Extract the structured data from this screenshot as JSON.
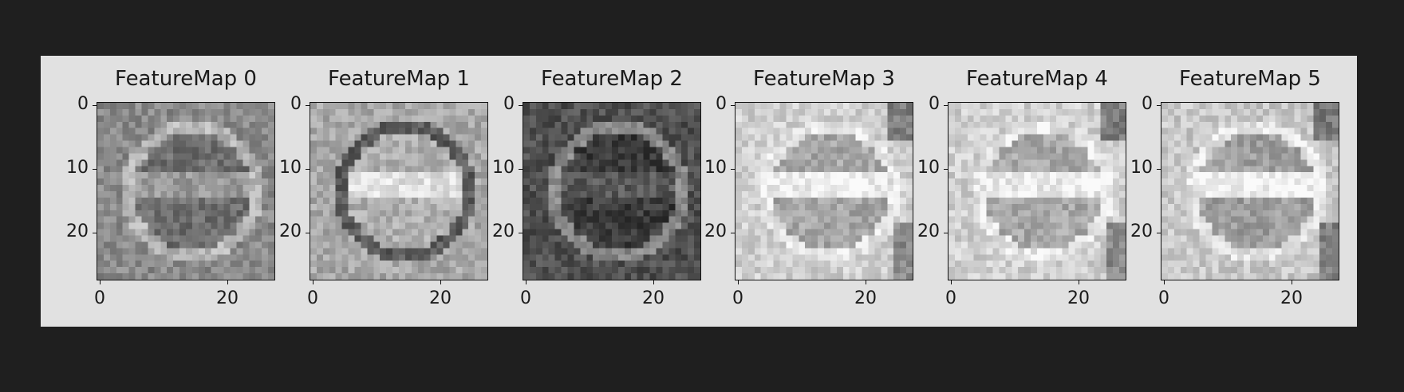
{
  "figure": {
    "panels": [
      {
        "title": "FeatureMap 0",
        "tone": "mid",
        "bg": "#8a8a8a",
        "sign": "#6e6e6e",
        "ring": "#b8b8b8",
        "bar": "#9a9a9a"
      },
      {
        "title": "FeatureMap 1",
        "tone": "light",
        "bg": "#a8a8a8",
        "sign": "#b0b0b0",
        "ring": "#5a5a5a",
        "bar": "#e0e0e0"
      },
      {
        "title": "FeatureMap 2",
        "tone": "dark",
        "bg": "#505050",
        "sign": "#3c3c3c",
        "ring": "#8a8a8a",
        "bar": "#5a5a5a"
      },
      {
        "title": "FeatureMap 3",
        "tone": "bright",
        "bg": "#d0d0d0",
        "sign": "#a6a6a6",
        "ring": "#e8e8e8",
        "bar": "#f0f0f0"
      },
      {
        "title": "FeatureMap 4",
        "tone": "bright",
        "bg": "#cfcfcf",
        "sign": "#a8a8a8",
        "ring": "#e6e6e6",
        "bar": "#ececec"
      },
      {
        "title": "FeatureMap 5",
        "tone": "bright",
        "bg": "#c8c8c8",
        "sign": "#9e9e9e",
        "ring": "#e4e4e4",
        "bar": "#f2f2f2"
      }
    ],
    "yticks": [
      "0",
      "10",
      "20"
    ],
    "xticks": [
      "0",
      "20"
    ]
  }
}
